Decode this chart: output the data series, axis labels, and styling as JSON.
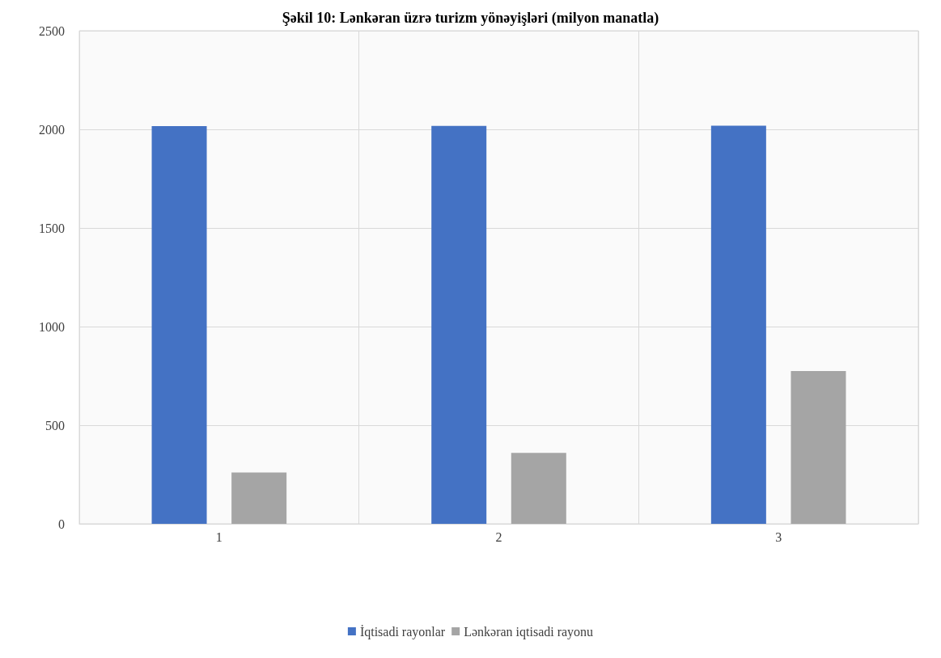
{
  "chart_data": {
    "type": "bar",
    "title": "Şəkil 10: Lənkəran üzrə turizm yönəyişləri (milyon manatla)",
    "categories": [
      "1",
      "2",
      "3"
    ],
    "series": [
      {
        "name": "İqtisadi rayonlar",
        "color": "#4472c4",
        "values": [
          2016,
          2017,
          2018
        ]
      },
      {
        "name": "Lənkəran iqtisadi rayonu",
        "color": "#a5a5a5",
        "values": [
          260,
          360,
          775
        ]
      }
    ],
    "ylim": [
      0,
      2500
    ],
    "yticks": [
      0,
      500,
      1000,
      1500,
      2000,
      2500
    ],
    "grid": true,
    "legend": "bottom"
  }
}
